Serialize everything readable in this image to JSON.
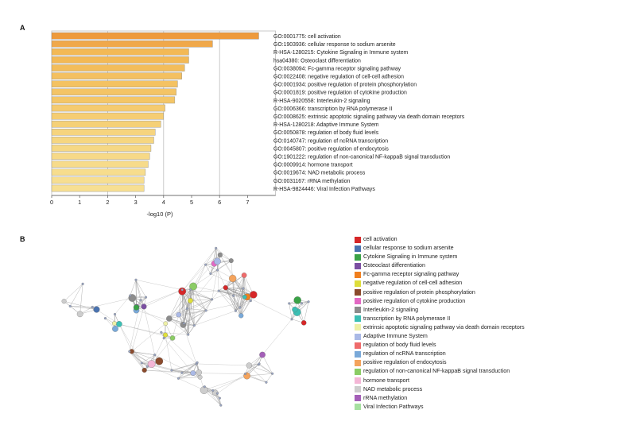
{
  "panels": {
    "a": "A",
    "b": "B"
  },
  "chart_data": [
    {
      "type": "bar",
      "orientation": "horizontal",
      "xlabel": "-log10 (P)",
      "xlim": [
        0,
        8
      ],
      "xticks": [
        "0",
        "1",
        "2",
        "3",
        "4",
        "5",
        "6",
        "7"
      ],
      "grid": "vertical gridlines at 2, 4, 6",
      "categories": [
        "GO:0001775: cell activation",
        "GO:1903936: cellular response to sodium arsenite",
        "R-HSA-1280215: Cytokine Signaling in Immune system",
        "hsa04380: Osteoclast differentiation",
        "GO:0038094: Fc-gamma receptor signaling pathway",
        "GO:0022408: negative regulation of cell-cell adhesion",
        "GO:0001934: positive regulation of protein phosphorylation",
        "GO:0001819: positive regulation of cytokine production",
        "R-HSA-9020558: Interleukin-2 signaling",
        "GO:0006366: transcription by RNA polymerase II",
        "GO:0008625: extrinsic apoptotic signaling pathway via death domain receptors",
        "R-HSA-1280218: Adaptive Immune System",
        "GO:0050878: regulation of body fluid levels",
        "GO:0140747: regulation of ncRNA transcription",
        "GO:0045807: positive regulation of endocytosis",
        "GO:1901222: regulation of non-canonical NF-kappaB signal transduction",
        "GO:0009914: hormone transport",
        "GO:0019674: NAD metabolic process",
        "GO:0031167: rRNA methylation",
        "R-HSA-9824446: Viral Infection Pathways"
      ],
      "values": [
        7.4,
        5.75,
        4.9,
        4.9,
        4.75,
        4.65,
        4.5,
        4.45,
        4.4,
        4.05,
        4.0,
        3.9,
        3.7,
        3.65,
        3.55,
        3.5,
        3.45,
        3.35,
        3.3,
        3.3
      ],
      "bar_colors": [
        "#ee9a3c",
        "#f0a84a",
        "#f3b955",
        "#f3b955",
        "#f3bd5b",
        "#f4c060",
        "#f4c262",
        "#f4c465",
        "#f4c667",
        "#f5cb70",
        "#f5cd73",
        "#f5d077",
        "#f6d47e",
        "#f6d680",
        "#f6d884",
        "#f7d987",
        "#f7db8a",
        "#f7dd8d",
        "#f7de90",
        "#f7df92"
      ]
    },
    {
      "type": "network",
      "legend_placement": "right",
      "legend": [
        {
          "label": "cell activation",
          "color": "#d62728"
        },
        {
          "label": "cellular response to sodium arsenite",
          "color": "#4a73b0"
        },
        {
          "label": "Cytokine Signaling in Immune system",
          "color": "#3aa246"
        },
        {
          "label": "Osteoclast differentiation",
          "color": "#7b4fa2"
        },
        {
          "label": "Fc-gamma receptor signaling pathway",
          "color": "#f07f1e"
        },
        {
          "label": "negative regulation of cell-cell adhesion",
          "color": "#dede3a"
        },
        {
          "label": "positive regulation of protein phosphorylation",
          "color": "#8a4a2c"
        },
        {
          "label": "positive regulation of cytokine production",
          "color": "#e369c4"
        },
        {
          "label": "Interleukin-2 signaling",
          "color": "#8c8c8c"
        },
        {
          "label": "transcription by RNA polymerase II",
          "color": "#3bbfb4"
        },
        {
          "label": "extrinsic apoptotic signaling pathway via death domain receptors",
          "color": "#eef0a6"
        },
        {
          "label": "Adaptive Immune System",
          "color": "#aab9e6"
        },
        {
          "label": "regulation of body fluid levels",
          "color": "#ef6b6b"
        },
        {
          "label": "regulation of ncRNA transcription",
          "color": "#79a9d9"
        },
        {
          "label": "positive regulation of endocytosis",
          "color": "#f4a35c"
        },
        {
          "label": "regulation of non-canonical NF-kappaB signal transduction",
          "color": "#8bcc65"
        },
        {
          "label": "hormone transport",
          "color": "#f4b6d6"
        },
        {
          "label": "NAD metabolic process",
          "color": "#cdcdcd"
        },
        {
          "label": "rRNA methylation",
          "color": "#a45fb8"
        },
        {
          "label": "Viral Infection Pathways",
          "color": "#a6e0a0"
        }
      ],
      "edge_color": "#9a9a9a"
    }
  ]
}
